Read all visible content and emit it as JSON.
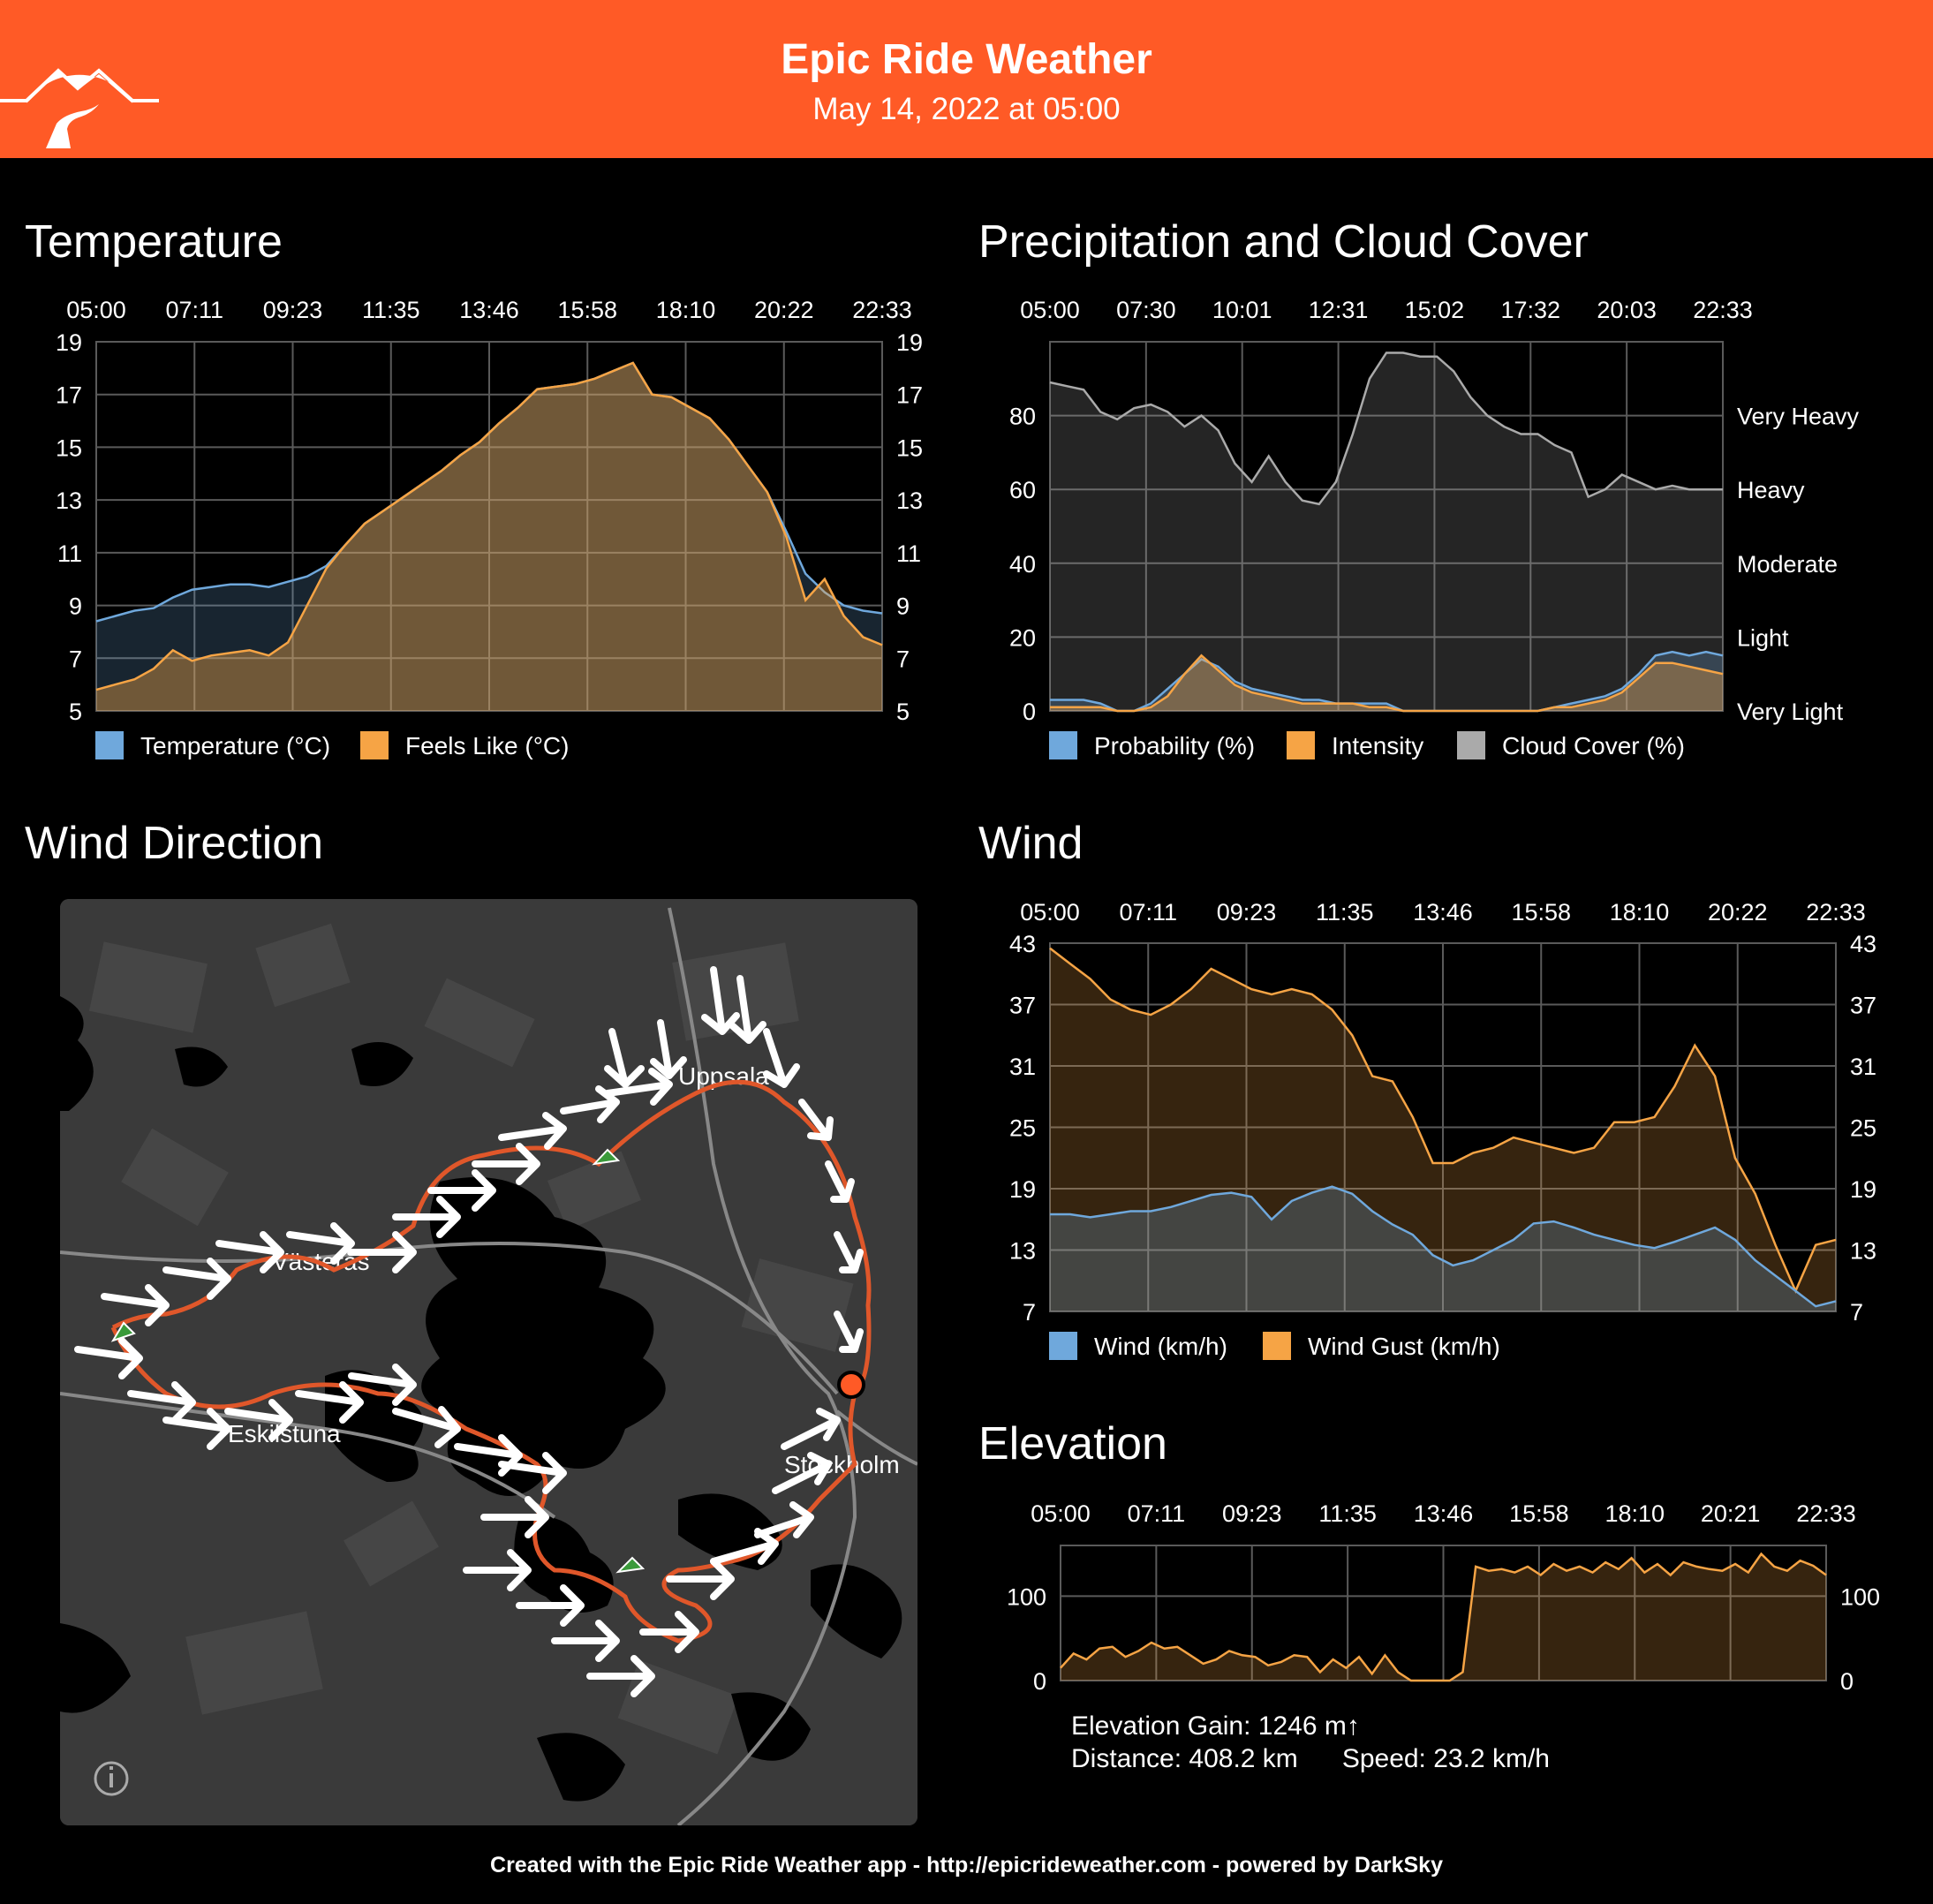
{
  "header": {
    "title": "Epic Ride Weather",
    "subtitle": "May 14, 2022 at 05:00"
  },
  "colors": {
    "header_bg": "#ff5a26",
    "temperature": "#6fa8dc",
    "feels_like": "#f6a445",
    "probability": "#6fa8dc",
    "intensity": "#f6a445",
    "cloud": "#aaaaaa",
    "wind": "#6fa8dc",
    "gust": "#f6a445",
    "elevation": "#f6a445",
    "route": "#e0572a"
  },
  "sections": {
    "temperature": "Temperature",
    "precip": "Precipitation and Cloud Cover",
    "wind_dir": "Wind Direction",
    "wind": "Wind",
    "elevation": "Elevation"
  },
  "chart_data": [
    {
      "id": "temperature",
      "type": "area",
      "x_ticks": [
        "05:00",
        "07:11",
        "09:23",
        "11:35",
        "13:46",
        "15:58",
        "18:10",
        "20:22",
        "22:33"
      ],
      "y_ticks": [
        5,
        7,
        9,
        11,
        13,
        15,
        17,
        19
      ],
      "ylim": [
        5,
        19
      ],
      "grid": true,
      "legend": "bottom-left",
      "series": [
        {
          "name": "Temperature (°C)",
          "color": "#6fa8dc",
          "values": [
            8.4,
            8.6,
            8.8,
            8.9,
            9.3,
            9.6,
            9.7,
            9.8,
            9.8,
            9.7,
            9.9,
            10.1,
            10.5,
            11.3,
            12.1,
            12.6,
            13.1,
            13.6,
            14.1,
            14.7,
            15.2,
            15.9,
            16.5,
            17.2,
            17.3,
            17.4,
            17.6,
            17.9,
            18.2,
            17.0,
            16.9,
            16.5,
            16.1,
            15.3,
            14.3,
            13.3,
            11.8,
            10.2,
            9.5,
            9.0,
            8.8,
            8.7
          ]
        },
        {
          "name": "Feels Like (°C)",
          "color": "#f6a445",
          "values": [
            5.8,
            6.0,
            6.2,
            6.6,
            7.3,
            6.9,
            7.1,
            7.2,
            7.3,
            7.1,
            7.6,
            9.0,
            10.4,
            11.3,
            12.1,
            12.6,
            13.1,
            13.6,
            14.1,
            14.7,
            15.2,
            15.9,
            16.5,
            17.2,
            17.3,
            17.4,
            17.6,
            17.9,
            18.2,
            17.0,
            16.9,
            16.5,
            16.1,
            15.3,
            14.3,
            13.3,
            11.6,
            9.2,
            10.0,
            8.6,
            7.8,
            7.5
          ]
        }
      ]
    },
    {
      "id": "precipitation",
      "type": "area",
      "x_ticks": [
        "05:00",
        "07:30",
        "10:01",
        "12:31",
        "15:02",
        "17:32",
        "20:03",
        "22:33"
      ],
      "y_ticks": [
        0,
        20,
        40,
        60,
        80
      ],
      "y_ticks_right": [
        "Very Heavy",
        "Heavy",
        "Moderate",
        "Light",
        "Very Light"
      ],
      "ylim": [
        0,
        100
      ],
      "grid": true,
      "legend": "bottom-left",
      "series": [
        {
          "name": "Probability (%)",
          "color": "#6fa8dc",
          "values": [
            3,
            3,
            3,
            2,
            0,
            0,
            2,
            6,
            10,
            14,
            12,
            8,
            6,
            5,
            4,
            3,
            3,
            2,
            2,
            2,
            2,
            0,
            0,
            0,
            0,
            0,
            0,
            0,
            0,
            0,
            1,
            2,
            3,
            4,
            6,
            10,
            15,
            16,
            15,
            16,
            15
          ]
        },
        {
          "name": "Intensity",
          "color": "#f6a445",
          "values": [
            1,
            1,
            1,
            1,
            0,
            0,
            1,
            4,
            10,
            15,
            11,
            7,
            5,
            4,
            3,
            2,
            2,
            2,
            2,
            1,
            1,
            0,
            0,
            0,
            0,
            0,
            0,
            0,
            0,
            0,
            1,
            1,
            2,
            3,
            5,
            9,
            13,
            13,
            12,
            11,
            10
          ]
        },
        {
          "name": "Cloud Cover (%)",
          "color": "#aaaaaa",
          "values": [
            89,
            88,
            87,
            81,
            79,
            82,
            83,
            81,
            77,
            80,
            76,
            67,
            62,
            69,
            62,
            57,
            56,
            62,
            75,
            90,
            97,
            97,
            96,
            96,
            92,
            85,
            80,
            77,
            75,
            75,
            72,
            70,
            58,
            60,
            64,
            62,
            60,
            61,
            60,
            60,
            60
          ]
        }
      ]
    },
    {
      "id": "wind",
      "type": "area",
      "x_ticks": [
        "05:00",
        "07:11",
        "09:23",
        "11:35",
        "13:46",
        "15:58",
        "18:10",
        "20:22",
        "22:33"
      ],
      "y_ticks": [
        7,
        13,
        19,
        25,
        31,
        37,
        43
      ],
      "ylim": [
        7,
        43
      ],
      "grid": true,
      "legend": "bottom-left",
      "series": [
        {
          "name": "Wind (km/h)",
          "color": "#6fa8dc",
          "values": [
            16.5,
            16.5,
            16.2,
            16.5,
            16.8,
            16.8,
            17.2,
            17.8,
            18.4,
            18.6,
            18.2,
            16.0,
            17.8,
            18.6,
            19.2,
            18.5,
            16.8,
            15.5,
            14.5,
            12.5,
            11.5,
            12.0,
            13.0,
            14.0,
            15.6,
            15.8,
            15.2,
            14.5,
            14.0,
            13.5,
            13.2,
            13.8,
            14.5,
            15.2,
            14.0,
            12.0,
            10.5,
            9.0,
            7.5,
            8.0
          ]
        },
        {
          "name": "Wind Gust (km/h)",
          "color": "#f6a445",
          "values": [
            42.5,
            41.0,
            39.5,
            37.5,
            36.5,
            36.0,
            37.0,
            38.5,
            40.5,
            39.5,
            38.5,
            38.0,
            38.5,
            38.0,
            36.5,
            34.0,
            30.0,
            29.5,
            26.0,
            21.5,
            21.5,
            22.5,
            23.0,
            24.0,
            23.5,
            23.0,
            22.5,
            23.0,
            25.5,
            25.5,
            26.0,
            29.0,
            33.0,
            30.0,
            22.0,
            18.5,
            13.5,
            9.0,
            13.5,
            14.0
          ]
        }
      ]
    },
    {
      "id": "elevation",
      "type": "area",
      "x_ticks": [
        "05:00",
        "07:11",
        "09:23",
        "11:35",
        "13:46",
        "15:58",
        "18:10",
        "20:21",
        "22:33"
      ],
      "y_ticks": [
        0,
        100
      ],
      "ylim": [
        0,
        160
      ],
      "grid": true,
      "series": [
        {
          "name": "Elevation",
          "color": "#f6a445",
          "values": [
            15,
            32,
            25,
            38,
            40,
            28,
            35,
            45,
            38,
            40,
            30,
            20,
            25,
            35,
            30,
            28,
            18,
            22,
            30,
            28,
            10,
            25,
            15,
            28,
            8,
            30,
            10,
            0,
            0,
            0,
            0,
            10,
            135,
            130,
            132,
            128,
            135,
            125,
            138,
            130,
            135,
            128,
            140,
            132,
            145,
            128,
            138,
            125,
            140,
            135,
            132,
            130,
            138,
            128,
            150,
            135,
            130,
            142,
            136,
            125
          ]
        }
      ]
    }
  ],
  "map": {
    "labels": {
      "uppsala": "Uppsala",
      "vasteras": "Västerås",
      "eskilstuna": "Eskilstuna",
      "stockholm": "Stockholm"
    },
    "info_icon": "info-icon"
  },
  "elevation_stats": {
    "gain": "Elevation Gain: 1246 m↑",
    "distance": "Distance: 408.2 km",
    "speed": "Speed: 23.2 km/h"
  },
  "footer": "Created with the Epic Ride Weather app - http://epicrideweather.com - powered by DarkSky"
}
